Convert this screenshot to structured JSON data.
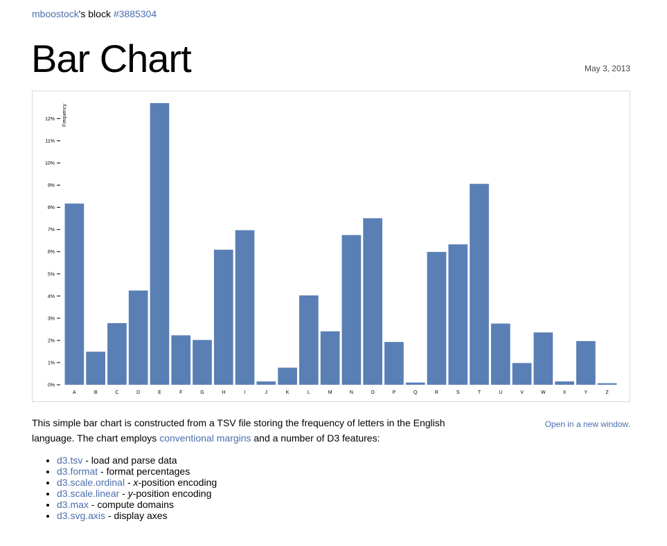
{
  "header": {
    "user": "mboostock",
    "mid": "'s block ",
    "block_id": "#3885304"
  },
  "page": {
    "title": "Bar Chart",
    "date": "May 3, 2013",
    "open_link": "Open in a new window."
  },
  "intro": {
    "p1": "This simple bar chart is constructed from a TSV file storing the frequency of letters in the English language. The chart employs ",
    "link": "conventional margins",
    "p2": " and a number of D3 features:"
  },
  "features": [
    {
      "name": "d3.tsv",
      "desc": " - load and parse data"
    },
    {
      "name": "d3.format",
      "desc": " - format percentages"
    },
    {
      "name": "d3.scale.ordinal",
      "pre": " - ",
      "em": "x",
      "desc": "-position encoding"
    },
    {
      "name": "d3.scale.linear",
      "pre": " - ",
      "em": "y",
      "desc": "-position encoding"
    },
    {
      "name": "d3.max",
      "desc": " - compute domains"
    },
    {
      "name": "d3.svg.axis",
      "desc": " - display axes"
    }
  ],
  "chart_data": {
    "type": "bar",
    "title": "",
    "xlabel": "",
    "ylabel": "Frequency",
    "ylim": [
      0,
      0.127
    ],
    "yticks": [
      0,
      0.01,
      0.02,
      0.03,
      0.04,
      0.05,
      0.06,
      0.07,
      0.08,
      0.09,
      0.1,
      0.11,
      0.12
    ],
    "ytick_labels": [
      "0%",
      "1%",
      "2%",
      "3%",
      "4%",
      "5%",
      "6%",
      "7%",
      "8%",
      "9%",
      "10%",
      "11%",
      "12%"
    ],
    "categories": [
      "A",
      "B",
      "C",
      "D",
      "E",
      "F",
      "G",
      "H",
      "I",
      "J",
      "K",
      "L",
      "M",
      "N",
      "O",
      "P",
      "Q",
      "R",
      "S",
      "T",
      "U",
      "V",
      "W",
      "X",
      "Y",
      "Z"
    ],
    "values": [
      0.0817,
      0.0149,
      0.0278,
      0.0425,
      0.127,
      0.0223,
      0.0202,
      0.0609,
      0.0697,
      0.0015,
      0.0077,
      0.0403,
      0.0241,
      0.0675,
      0.0751,
      0.0193,
      0.001,
      0.0599,
      0.0633,
      0.0906,
      0.0276,
      0.0098,
      0.0236,
      0.0015,
      0.0197,
      0.0007
    ],
    "bar_color": "#5a7fb5",
    "grid": false
  }
}
